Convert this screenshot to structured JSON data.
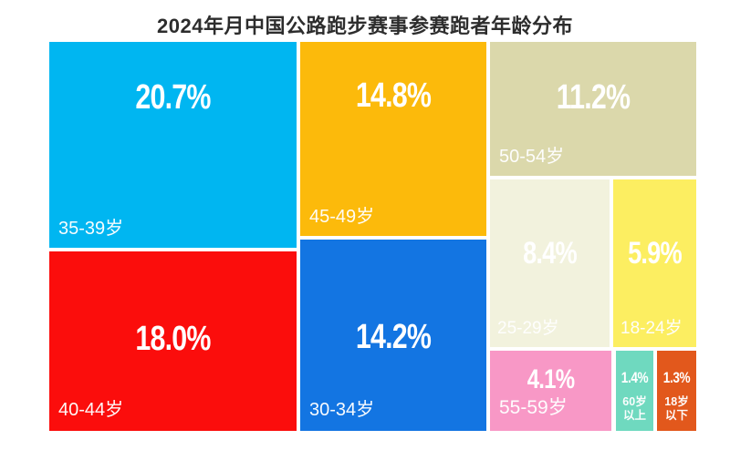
{
  "page": {
    "title": "2024年月中国公路跑步赛事参赛跑者年龄分布",
    "background": "#ffffff",
    "title_color": "#2d2d2d",
    "label_color": "#ffffff"
  },
  "chart_data": {
    "type": "treemap",
    "title": "2024年月中国公路跑步赛事参赛跑者年龄分布",
    "unit": "%",
    "legend": "none",
    "items": [
      {
        "label": "35-39岁",
        "value": 20.7,
        "display": "20.7%",
        "color": "#00b6f1"
      },
      {
        "label": "45-49岁",
        "value": 14.8,
        "display": "14.8%",
        "color": "#fcba0b"
      },
      {
        "label": "50-54岁",
        "value": 11.2,
        "display": "11.2%",
        "color": "#dbd8ab"
      },
      {
        "label": "25-29岁",
        "value": 8.4,
        "display": "8.4%",
        "color": "#f2f2dd"
      },
      {
        "label": "18-24岁",
        "value": 5.9,
        "display": "5.9%",
        "color": "#fcee61"
      },
      {
        "label": "40-44岁",
        "value": 18.0,
        "display": "18.0%",
        "color": "#fb0d0c"
      },
      {
        "label": "30-34岁",
        "value": 14.2,
        "display": "14.2%",
        "color": "#1375e2"
      },
      {
        "label": "55-59岁",
        "value": 4.1,
        "display": "4.1%",
        "color": "#f898c6"
      },
      {
        "label": "60岁\n以上",
        "value": 1.4,
        "display": "1.4%",
        "color": "#6fd9bf"
      },
      {
        "label": "18岁\n以下",
        "value": 1.3,
        "display": "1.3%",
        "color": "#e2581c"
      }
    ]
  }
}
